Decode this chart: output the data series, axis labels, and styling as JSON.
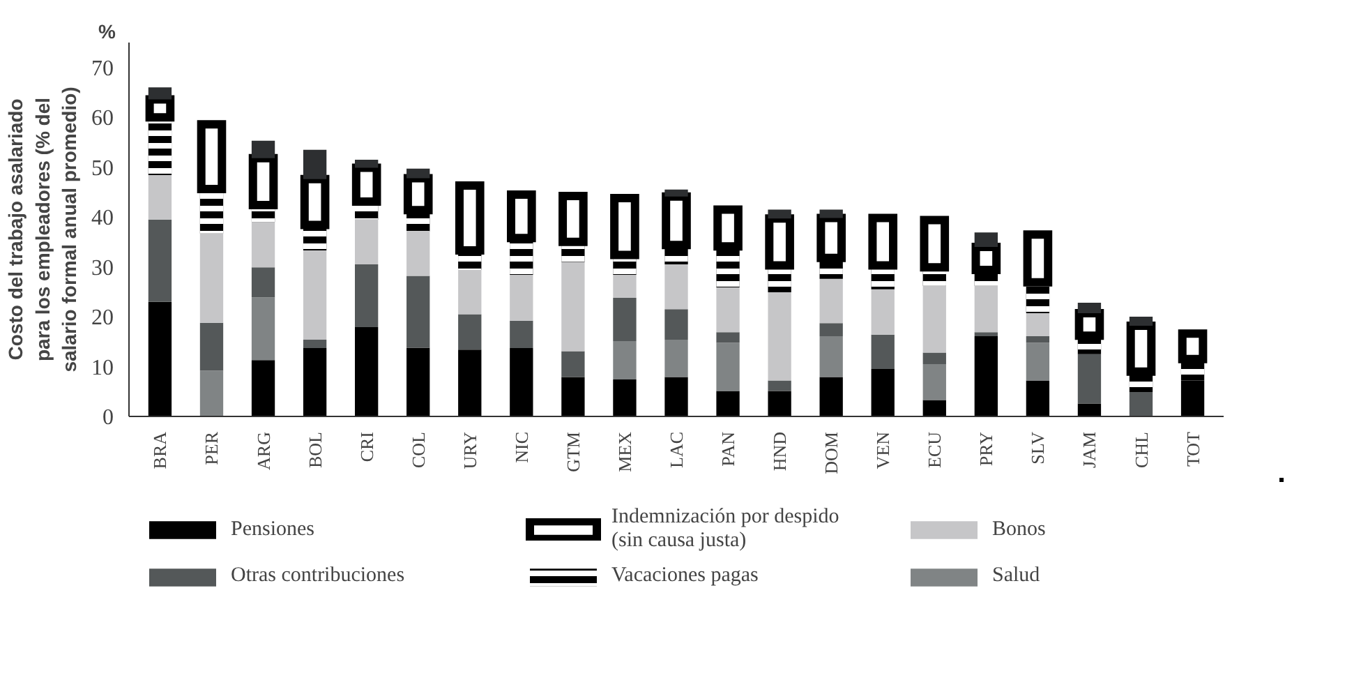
{
  "chart_data": {
    "type": "bar",
    "stacked": true,
    "ylabel": "Costo del trabajo asalariado\npara los empleadores (% del\nsalario formal anual promedio)",
    "annotations": [
      "%"
    ],
    "categories": [
      "BRA",
      "PER",
      "ARG",
      "BOL",
      "CRI",
      "COL",
      "URY",
      "NIC",
      "GTM",
      "MEX",
      "LAC",
      "PAN",
      "HND",
      "DOM",
      "VEN",
      "ECU",
      "PRY",
      "SLV",
      "JAM",
      "CHL",
      "TOT"
    ],
    "series": [
      {
        "name": "Pensiones",
        "color": "#000000",
        "values": [
          23.0,
          null,
          11.3,
          13.7,
          17.9,
          13.8,
          13.4,
          13.7,
          7.9,
          7.4,
          7.9,
          5.1,
          5.1,
          7.9,
          9.5,
          3.3,
          16.1,
          7.2,
          2.6,
          null,
          7.2
        ]
      },
      {
        "name": "Salud",
        "color": "#808485",
        "values": [
          null,
          9.2,
          12.6,
          null,
          null,
          null,
          null,
          null,
          null,
          7.7,
          7.5,
          9.7,
          null,
          8.2,
          null,
          7.2,
          null,
          7.6,
          null,
          null,
          null
        ]
      },
      {
        "name": "Otras contribuciones",
        "color": "#545859",
        "values": [
          16.5,
          9.6,
          6.0,
          1.7,
          12.6,
          14.4,
          7.1,
          5.5,
          5.2,
          8.7,
          6.1,
          2.1,
          2.1,
          2.6,
          6.9,
          2.3,
          0.8,
          1.3,
          9.9,
          4.9,
          null
        ]
      },
      {
        "name": "Bonos",
        "color": "#c6c6c8",
        "values": [
          8.9,
          17.9,
          9.1,
          17.9,
          9.0,
          8.9,
          8.9,
          9.2,
          17.9,
          4.6,
          9.0,
          9.0,
          17.7,
          8.9,
          9.1,
          13.4,
          9.3,
          4.6,
          null,
          null,
          null
        ]
      },
      {
        "name": "Vacaciones pagas",
        "color": "#000000",
        "values": [
          11.6,
          8.9,
          3.4,
          5.1,
          3.6,
          4.3,
          3.9,
          7.4,
          4.0,
          4.0,
          3.9,
          8.2,
          5.4,
          4.2,
          4.8,
          3.7,
          3.2,
          6.2,
          3.7,
          4.1,
          4.3
        ]
      },
      {
        "name": "Indemnización por despido\n(sin causa justa)",
        "color": "#000000",
        "values": [
          3.6,
          13.0,
          9.4,
          9.2,
          6.8,
          6.4,
          13.0,
          8.7,
          9.2,
          11.4,
          9.7,
          7.4,
          9.4,
          8.0,
          9.5,
          9.5,
          4.6,
          9.6,
          4.5,
          9.2,
          5.1
        ]
      },
      {
        "color": "#2d2f31",
        "values": [
          2.4,
          null,
          3.5,
          5.9,
          1.6,
          1.9,
          null,
          null,
          null,
          null,
          1.4,
          null,
          1.8,
          1.7,
          null,
          null,
          2.9,
          null,
          2.1,
          1.8,
          null
        ]
      }
    ],
    "ylim": [
      0,
      75
    ],
    "yticks": [
      0,
      10,
      20,
      30,
      40,
      50,
      60,
      70
    ],
    "grid": false,
    "legend": "bottom"
  }
}
